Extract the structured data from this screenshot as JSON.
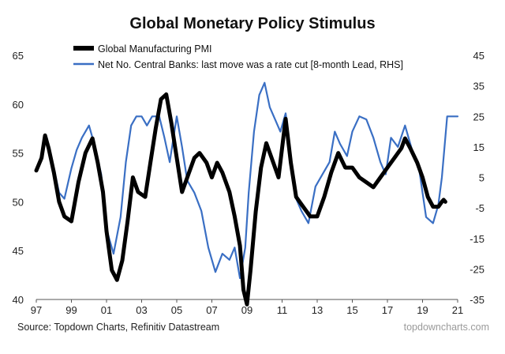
{
  "chart_data": {
    "type": "line",
    "title": "Global Monetary Policy Stimulus",
    "source": "Source: Topdown Charts, Refinitiv Datastream",
    "watermark": "topdowncharts.com",
    "x_axis": {
      "range": [
        1997,
        2021
      ],
      "ticks": [
        1997,
        1999,
        2001,
        2003,
        2005,
        2007,
        2009,
        2011,
        2013,
        2015,
        2017,
        2019,
        2021
      ],
      "tick_labels": [
        "97",
        "99",
        "01",
        "03",
        "05",
        "07",
        "09",
        "11",
        "13",
        "15",
        "17",
        "19",
        "21"
      ]
    },
    "y_left": {
      "range": [
        40,
        65
      ],
      "ticks": [
        40,
        45,
        50,
        55,
        60,
        65
      ],
      "tick_labels": [
        "40",
        "45",
        "50",
        "55",
        "60",
        "65"
      ]
    },
    "y_right": {
      "range": [
        -35,
        45
      ],
      "ticks": [
        -35,
        -25,
        -15,
        -5,
        5,
        15,
        25,
        35,
        45
      ],
      "tick_labels": [
        "-35",
        "-25",
        "-15",
        "-5",
        "5",
        "15",
        "25",
        "35",
        "45"
      ]
    },
    "grid": false,
    "legend_position": "top-left",
    "series": [
      {
        "name": "Global Manufacturing PMI",
        "axis": "left",
        "color": "#000000",
        "x": [
          1997.0,
          1997.3,
          1997.5,
          1997.7,
          1998.0,
          1998.3,
          1998.6,
          1999.0,
          1999.4,
          1999.8,
          2000.2,
          2000.5,
          2000.8,
          2001.0,
          2001.3,
          2001.6,
          2001.9,
          2002.2,
          2002.5,
          2002.8,
          2003.2,
          2003.5,
          2003.8,
          2004.1,
          2004.4,
          2004.7,
          2005.0,
          2005.3,
          2005.7,
          2006.0,
          2006.3,
          2006.7,
          2007.0,
          2007.3,
          2007.6,
          2008.0,
          2008.3,
          2008.6,
          2008.8,
          2009.0,
          2009.2,
          2009.5,
          2009.8,
          2010.1,
          2010.4,
          2010.8,
          2011.2,
          2011.5,
          2011.8,
          2012.2,
          2012.6,
          2013.0,
          2013.4,
          2013.8,
          2014.2,
          2014.6,
          2015.0,
          2015.4,
          2015.8,
          2016.2,
          2016.6,
          2017.0,
          2017.4,
          2017.8,
          2018.0,
          2018.3,
          2018.7,
          2019.0,
          2019.3,
          2019.6,
          2019.9,
          2020.1,
          2020.2,
          2020.3
        ],
        "y": [
          53.2,
          54.5,
          56.8,
          55.5,
          53.0,
          50.0,
          48.5,
          48.0,
          52.0,
          55.0,
          56.5,
          54.0,
          51.0,
          47.0,
          43.0,
          42.0,
          44.0,
          48.0,
          52.5,
          51.0,
          50.5,
          54.0,
          57.5,
          60.5,
          61.0,
          58.0,
          54.5,
          51.0,
          53.0,
          54.5,
          55.0,
          54.0,
          52.5,
          54.0,
          53.0,
          51.0,
          48.5,
          45.5,
          41.0,
          39.5,
          43.0,
          49.0,
          53.5,
          56.0,
          54.5,
          52.5,
          58.5,
          54.0,
          50.5,
          49.5,
          48.5,
          48.5,
          50.5,
          53.0,
          55.0,
          53.5,
          53.5,
          52.5,
          52.0,
          51.5,
          52.5,
          53.5,
          54.5,
          55.5,
          56.5,
          55.5,
          54.0,
          52.5,
          50.5,
          49.5,
          49.5,
          50.0,
          50.2,
          50.0
        ]
      },
      {
        "name": "Net No. Central Banks: last move was a rate cut  [8-month Lead, RHS]",
        "axis": "right",
        "color": "#3a6fc4",
        "x": [
          1997.6,
          1998.0,
          1998.3,
          1998.6,
          1999.0,
          1999.3,
          1999.6,
          2000.0,
          2000.3,
          2000.7,
          2001.0,
          2001.4,
          2001.8,
          2002.1,
          2002.4,
          2002.7,
          2003.0,
          2003.3,
          2003.6,
          2004.0,
          2004.3,
          2004.6,
          2005.0,
          2005.3,
          2005.6,
          2006.0,
          2006.4,
          2006.8,
          2007.2,
          2007.6,
          2008.0,
          2008.3,
          2008.6,
          2008.9,
          2009.1,
          2009.4,
          2009.7,
          2010.0,
          2010.3,
          2010.6,
          2010.9,
          2011.2,
          2011.5,
          2011.8,
          2012.1,
          2012.5,
          2012.9,
          2013.3,
          2013.7,
          2014.0,
          2014.3,
          2014.7,
          2015.0,
          2015.4,
          2015.8,
          2016.2,
          2016.6,
          2016.9,
          2017.2,
          2017.6,
          2018.0,
          2018.4,
          2018.8,
          2019.2,
          2019.6,
          2019.9,
          2020.1,
          2020.4,
          2020.7,
          2021.0
        ],
        "y": [
          18,
          8,
          0,
          -2,
          8,
          14,
          18,
          22,
          16,
          6,
          -12,
          -20,
          -8,
          10,
          22,
          25,
          25,
          22,
          25,
          25,
          18,
          10,
          25,
          15,
          4,
          0,
          -6,
          -18,
          -26,
          -20,
          -22,
          -18,
          -28,
          -18,
          0,
          20,
          32,
          36,
          28,
          24,
          20,
          26,
          12,
          -2,
          -6,
          -10,
          2,
          6,
          10,
          20,
          16,
          12,
          20,
          25,
          24,
          18,
          10,
          6,
          18,
          15,
          22,
          14,
          8,
          -8,
          -10,
          -4,
          5,
          25,
          25,
          25
        ]
      }
    ]
  }
}
